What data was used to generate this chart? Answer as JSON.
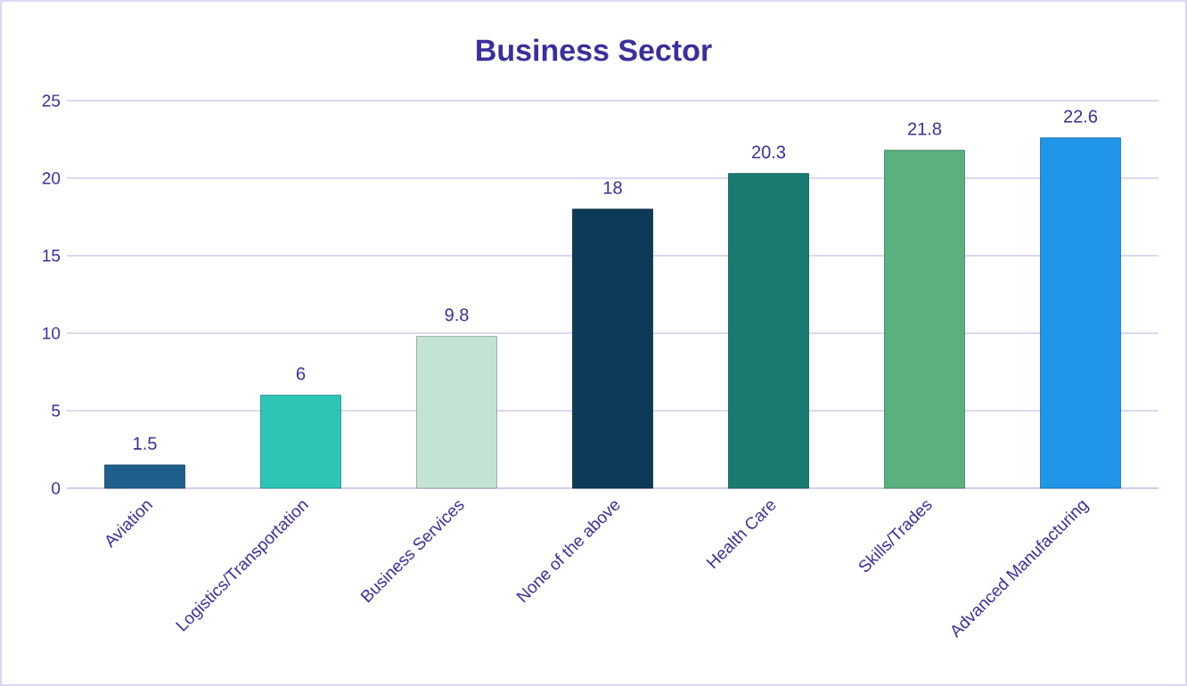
{
  "chart_data": {
    "type": "bar",
    "title": "Business Sector",
    "categories": [
      "Aviation",
      "Logistics/Transportation",
      "Business Services",
      "None of the above",
      "Health Care",
      "Skills/Trades",
      "Advanced Manufacturing"
    ],
    "values": [
      1.5,
      6,
      9.8,
      18,
      20.3,
      21.8,
      22.6
    ],
    "colors": [
      "#1f5f8b",
      "#2ec4b6",
      "#c3e3d3",
      "#0e3a5a",
      "#1a7a70",
      "#5bb07f",
      "#2196e8"
    ],
    "ylim": [
      0,
      25
    ],
    "yticks": [
      0,
      5,
      10,
      15,
      20,
      25
    ],
    "grid": "y",
    "data_labels": true
  }
}
